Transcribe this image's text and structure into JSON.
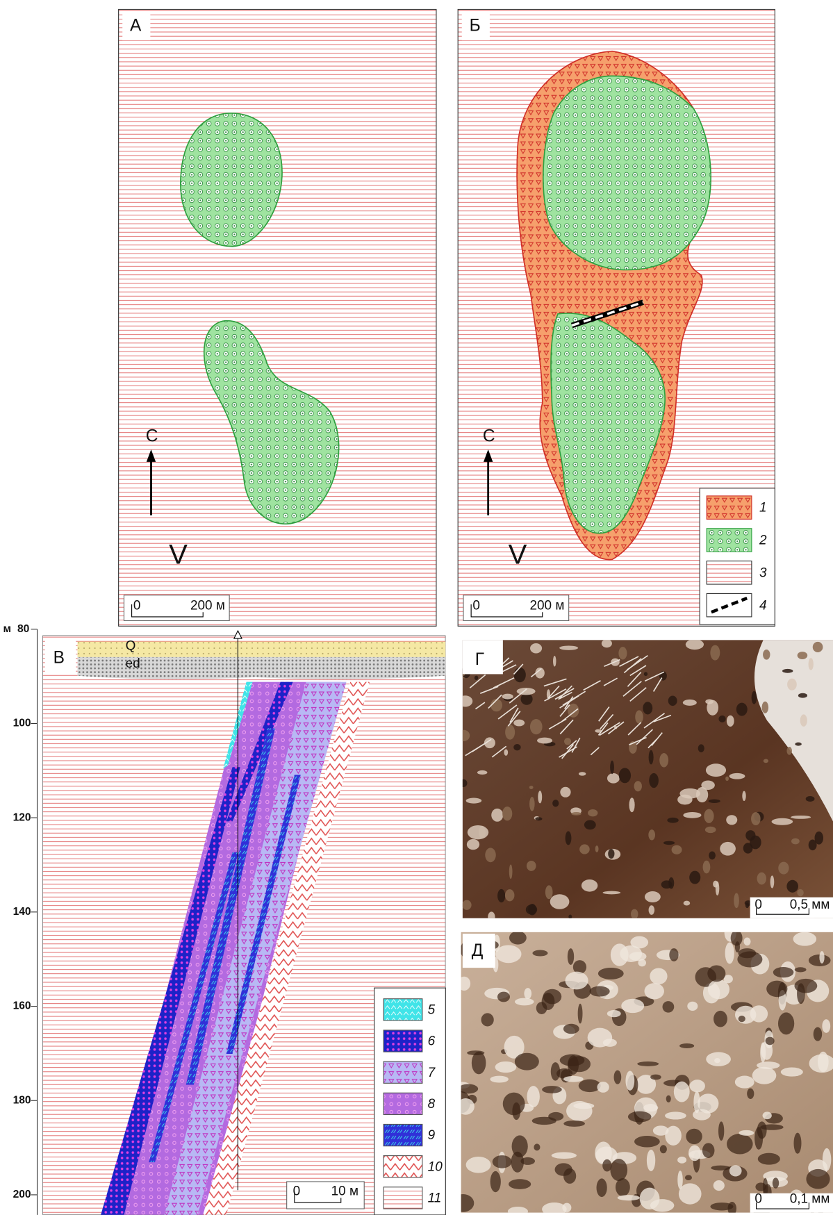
{
  "maps": [
    {
      "label": "А",
      "north": "С",
      "mark": "V",
      "scale": {
        "zero": "0",
        "length": "200 м"
      }
    },
    {
      "label": "Б",
      "north": "С",
      "mark": "V",
      "scale": {
        "zero": "0",
        "length": "200 м"
      }
    }
  ],
  "map_legend": [
    "1",
    "2",
    "3",
    "4"
  ],
  "section": {
    "label": "В",
    "depth_unit": "м",
    "depth_ticks": [
      80,
      100,
      120,
      140,
      160,
      180,
      200
    ],
    "layers": [
      "Q",
      "ed"
    ],
    "scale": {
      "zero": "0",
      "length": "10 м"
    }
  },
  "section_legend": [
    "5",
    "6",
    "7",
    "8",
    "9",
    "10",
    "11"
  ],
  "photos": [
    {
      "label": "Г",
      "scale": {
        "zero": "0",
        "length": "0,5 мм"
      }
    },
    {
      "label": "Д",
      "scale": {
        "zero": "0",
        "length": "0,1 мм"
      }
    }
  ]
}
